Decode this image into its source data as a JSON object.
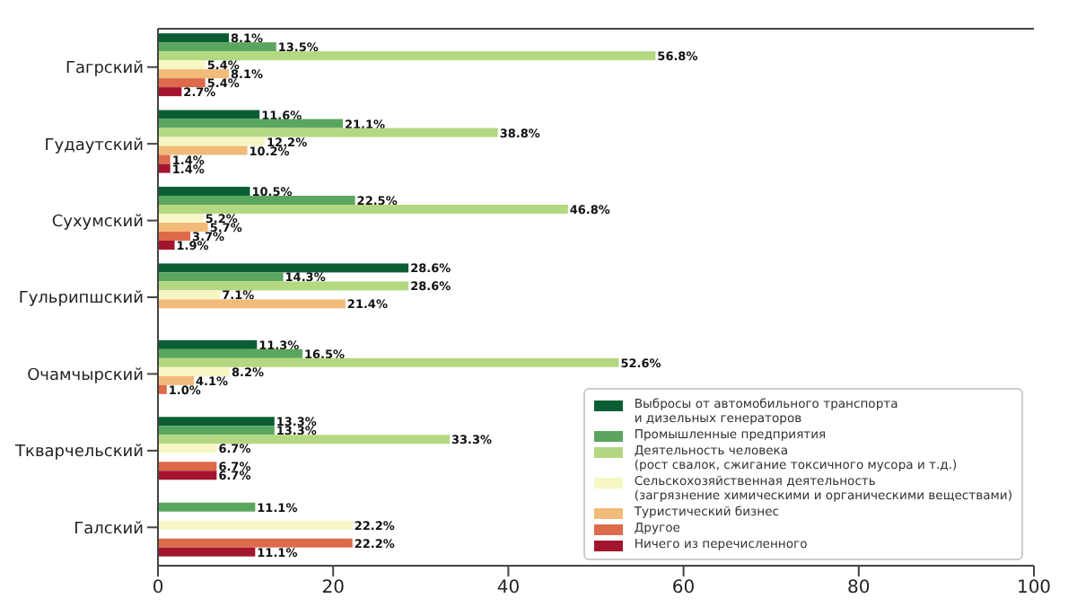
{
  "chart_data": {
    "type": "bar",
    "orientation": "horizontal",
    "categories": [
      "Гагрский",
      "Гудаутский",
      "Сухумский",
      "Гульрипшский",
      "Очамчырский",
      "Ткварчельский",
      "Галский"
    ],
    "xlim": [
      0,
      100
    ],
    "xticks": [
      0,
      20,
      40,
      60,
      80,
      100
    ],
    "grid": false,
    "legend": "bottom right",
    "series": [
      {
        "name": "Выбросы от автомобильного транспорта\nи дизельных генераторов",
        "color": "#0b5e34",
        "values": [
          8.1,
          11.6,
          10.5,
          28.6,
          11.3,
          13.3,
          null
        ],
        "value_labels": [
          "8.1%",
          "11.6%",
          "10.5%",
          "28.6%",
          "11.3%",
          "13.3%",
          null
        ]
      },
      {
        "name": "Промышленные предприятия",
        "color": "#5aa65f",
        "values": [
          13.5,
          21.1,
          22.5,
          14.3,
          16.5,
          13.3,
          11.1
        ],
        "value_labels": [
          "13.5%",
          "21.1%",
          "22.5%",
          "14.3%",
          "16.5%",
          "13.3%",
          "11.1%"
        ]
      },
      {
        "name": "Деятельность человека\n(рост свалок, сжигание токсичного мусора и т.д.)",
        "color": "#b4d882",
        "values": [
          56.8,
          38.8,
          46.8,
          28.6,
          52.6,
          33.3,
          null
        ],
        "value_labels": [
          "56.8%",
          "38.8%",
          "46.8%",
          "28.6%",
          "52.6%",
          "33.3%",
          null
        ]
      },
      {
        "name": "Сельскохозяйственная деятельность\n(загрязнение химическими и органическими веществами)",
        "color": "#f6f7c4",
        "values": [
          5.4,
          12.2,
          5.2,
          7.1,
          8.2,
          6.7,
          22.2
        ],
        "value_labels": [
          "5.4%",
          "12.2%",
          "5.2%",
          "7.1%",
          "8.2%",
          "6.7%",
          "22.2%"
        ]
      },
      {
        "name": "Туристический бизнес",
        "color": "#f2bb7a",
        "values": [
          8.1,
          10.2,
          5.7,
          21.4,
          4.1,
          null,
          null
        ],
        "value_labels": [
          "8.1%",
          "10.2%",
          "5.7%",
          "21.4%",
          "4.1%",
          null,
          null
        ]
      },
      {
        "name": "Другое",
        "color": "#de6a4c",
        "values": [
          5.4,
          1.4,
          3.7,
          null,
          1.0,
          6.7,
          22.2
        ],
        "value_labels": [
          "5.4%",
          "1.4%",
          "3.7%",
          null,
          "1.0%",
          "6.7%",
          "22.2%"
        ]
      },
      {
        "name": "Ничего из перечисленного",
        "color": "#a3152f",
        "values": [
          2.7,
          1.4,
          1.9,
          null,
          null,
          6.7,
          11.1
        ],
        "value_labels": [
          "2.7%",
          "1.4%",
          "1.9%",
          null,
          null,
          "6.7%",
          "11.1%"
        ]
      }
    ]
  }
}
